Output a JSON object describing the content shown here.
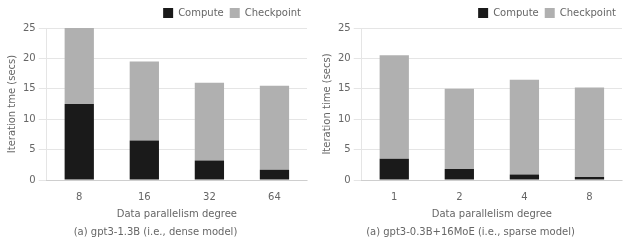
{
  "chart_data": [
    {
      "type": "bar",
      "stacked": true,
      "categories": [
        "8",
        "16",
        "32",
        "64"
      ],
      "series": [
        {
          "name": "Compute",
          "color": "#1a1a1a",
          "values": [
            12.5,
            6.5,
            3.2,
            1.7
          ]
        },
        {
          "name": "Checkpoint",
          "color": "#b0b0b0",
          "values": [
            12.5,
            13.0,
            12.8,
            13.8
          ]
        }
      ],
      "xlabel": "Data parallelism degree",
      "ylabel": "Iteration tme (secs)",
      "ylim": [
        0,
        25
      ],
      "yticks": [
        0,
        5,
        10,
        15,
        20,
        25
      ],
      "grid": "y",
      "legend": "upper right",
      "caption": "(a) gpt3-1.3B (i.e., dense model)"
    },
    {
      "type": "bar",
      "stacked": true,
      "categories": [
        "1",
        "2",
        "4",
        "8"
      ],
      "series": [
        {
          "name": "Compute",
          "color": "#1a1a1a",
          "values": [
            3.5,
            1.8,
            0.9,
            0.5
          ]
        },
        {
          "name": "Checkpoint",
          "color": "#b0b0b0",
          "values": [
            17.0,
            13.2,
            15.6,
            14.7
          ]
        }
      ],
      "xlabel": "Data parallelism degree",
      "ylabel": "Iteration time (secs)",
      "ylim": [
        0,
        25
      ],
      "yticks": [
        0,
        5,
        10,
        15,
        20,
        25
      ],
      "grid": "y",
      "legend": "upper right",
      "caption": "(a) gpt3-0.3B+16MoE (i.e., sparse model)"
    }
  ]
}
